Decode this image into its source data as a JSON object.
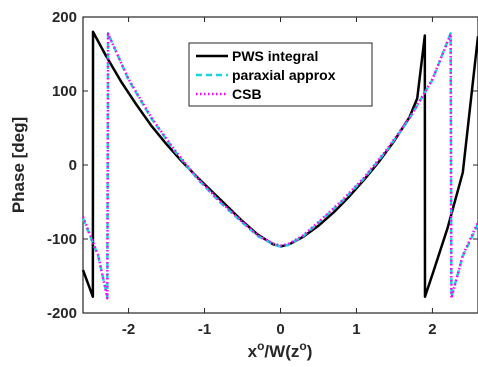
{
  "chart_data": {
    "type": "line",
    "title": "",
    "xlabel": "x",
    "xlabel_sup1": "o",
    "xlabel_mid": "/W(z",
    "xlabel_sup2": "o",
    "xlabel_end": ")",
    "ylabel": "Phase [deg]",
    "xlim": [
      -2.6,
      2.6
    ],
    "ylim": [
      -200,
      200
    ],
    "xticks": [
      -2,
      -1,
      0,
      1,
      2
    ],
    "yticks": [
      -200,
      -100,
      0,
      100,
      200
    ],
    "grid": false,
    "legend_position": "top-center",
    "series": [
      {
        "name": "PWS integral",
        "color": "#000000",
        "style": "solid",
        "points": [
          [
            -2.6,
            -142
          ],
          [
            -2.47,
            -178
          ],
          [
            -2.468,
            180
          ],
          [
            -2.3,
            148
          ],
          [
            -2.1,
            113
          ],
          [
            -1.9,
            82
          ],
          [
            -1.7,
            53
          ],
          [
            -1.5,
            28
          ],
          [
            -1.3,
            5
          ],
          [
            -1.1,
            -16
          ],
          [
            -0.9,
            -36
          ],
          [
            -0.7,
            -56
          ],
          [
            -0.5,
            -76
          ],
          [
            -0.3,
            -94
          ],
          [
            -0.1,
            -107
          ],
          [
            0.0,
            -110
          ],
          [
            0.1,
            -108
          ],
          [
            0.3,
            -97
          ],
          [
            0.5,
            -82
          ],
          [
            0.7,
            -64
          ],
          [
            0.9,
            -43
          ],
          [
            1.1,
            -20
          ],
          [
            1.3,
            5
          ],
          [
            1.5,
            33
          ],
          [
            1.7,
            65
          ],
          [
            1.8,
            90
          ],
          [
            1.9,
            175
          ],
          [
            1.902,
            -178
          ],
          [
            2.0,
            -148
          ],
          [
            2.2,
            -85
          ],
          [
            2.4,
            -10
          ],
          [
            2.6,
            174
          ]
        ]
      },
      {
        "name": "paraxial approx",
        "color": "#17d6dc",
        "style": "dashed",
        "points": [
          [
            -2.6,
            -72
          ],
          [
            -2.4,
            -123
          ],
          [
            -2.28,
            -178
          ],
          [
            -2.27,
            178
          ],
          [
            -2.0,
            115
          ],
          [
            -1.7,
            63
          ],
          [
            -1.4,
            20
          ],
          [
            -1.1,
            -18
          ],
          [
            -0.8,
            -50
          ],
          [
            -0.5,
            -78
          ],
          [
            -0.3,
            -96
          ],
          [
            -0.1,
            -107
          ],
          [
            0.0,
            -110
          ],
          [
            0.1,
            -108
          ],
          [
            0.3,
            -96
          ],
          [
            0.5,
            -78
          ],
          [
            0.8,
            -50
          ],
          [
            1.1,
            -18
          ],
          [
            1.4,
            20
          ],
          [
            1.7,
            63
          ],
          [
            2.0,
            115
          ],
          [
            2.24,
            178
          ],
          [
            2.25,
            -178
          ],
          [
            2.4,
            -123
          ],
          [
            2.6,
            -80
          ]
        ]
      },
      {
        "name": "CSB",
        "color": "#ff00ff",
        "style": "dotted",
        "points": [
          [
            -2.6,
            -70
          ],
          [
            -2.4,
            -122
          ],
          [
            -2.28,
            -180
          ],
          [
            -2.27,
            177
          ],
          [
            -2.0,
            116
          ],
          [
            -1.7,
            64
          ],
          [
            -1.4,
            21
          ],
          [
            -1.1,
            -17
          ],
          [
            -0.8,
            -49
          ],
          [
            -0.5,
            -77
          ],
          [
            -0.3,
            -95
          ],
          [
            -0.1,
            -106
          ],
          [
            0.0,
            -109
          ],
          [
            0.1,
            -107
          ],
          [
            0.3,
            -95
          ],
          [
            0.5,
            -77
          ],
          [
            0.8,
            -49
          ],
          [
            1.1,
            -17
          ],
          [
            1.4,
            21
          ],
          [
            1.7,
            64
          ],
          [
            2.0,
            116
          ],
          [
            2.24,
            177
          ],
          [
            2.25,
            -180
          ],
          [
            2.4,
            -122
          ],
          [
            2.6,
            -77
          ]
        ]
      }
    ]
  }
}
